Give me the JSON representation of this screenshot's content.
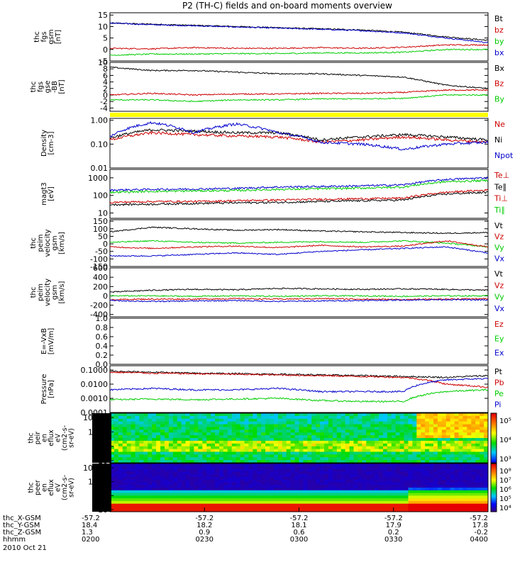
{
  "title": "P2 (TH-C) fields and on-board moments overview",
  "chart_data": {
    "type": "line",
    "panels": [
      {
        "ylabel": [
          "thc",
          "fgs",
          "gsm",
          "[nT]"
        ],
        "yticks": [
          "15",
          "10",
          "5",
          "0",
          "-5"
        ],
        "ylim": [
          -5,
          16
        ],
        "legend": [
          {
            "name": "Bt",
            "color": "#000000"
          },
          {
            "name": "bz",
            "color": "#cc0000"
          },
          {
            "name": "by",
            "color": "#00cc00"
          },
          {
            "name": "bx",
            "color": "#0000cc"
          }
        ],
        "series": [
          {
            "name": "Bt",
            "color": "#000000",
            "values": [
              11.5,
              11,
              10.5,
              10,
              9.5,
              9,
              8.5,
              7.5,
              5.5,
              4
            ]
          },
          {
            "name": "bx",
            "color": "#0000cc",
            "values": [
              11.5,
              10.8,
              10.3,
              9.8,
              9.3,
              8.8,
              8.2,
              7.2,
              5,
              3
            ]
          },
          {
            "name": "bz",
            "color": "#cc0000",
            "values": [
              0.5,
              0.3,
              0.8,
              0.5,
              0.5,
              0.8,
              0.5,
              1,
              2,
              2
            ]
          },
          {
            "name": "by",
            "color": "#00cc00",
            "values": [
              -2.5,
              -2,
              -2,
              -1.8,
              -1.8,
              -1.5,
              -1.5,
              -1.2,
              0,
              0
            ]
          }
        ]
      },
      {
        "ylabel": [
          "thc",
          "fgs",
          "gse",
          "-BB",
          "[nT]"
        ],
        "yticks": [
          "10",
          "8",
          "6",
          "4",
          "2",
          "0",
          "-2",
          "-4"
        ],
        "ylim": [
          -5,
          10
        ],
        "legend": [
          {
            "name": "Bx",
            "color": "#000000"
          },
          {
            "name": "Bz",
            "color": "#cc0000"
          },
          {
            "name": "By",
            "color": "#00cc00"
          }
        ],
        "series": [
          {
            "name": "Bx",
            "color": "#000000",
            "values": [
              8.5,
              7.5,
              7.5,
              7,
              6.5,
              6.5,
              6,
              5.5,
              3,
              2
            ]
          },
          {
            "name": "Bz",
            "color": "#cc0000",
            "values": [
              0,
              0.5,
              0,
              0.3,
              0.3,
              0.5,
              0.5,
              0.8,
              1.5,
              1.5
            ]
          },
          {
            "name": "By",
            "color": "#00cc00",
            "values": [
              -1.5,
              -1.5,
              -2,
              -1.5,
              -1.5,
              -1.2,
              -1.2,
              -1,
              0,
              0
            ]
          }
        ]
      },
      {
        "ylabel": [
          "Density",
          "[cm-3]"
        ],
        "yticks": [
          "1.00",
          "0.10",
          "0.01"
        ],
        "ylim": [
          0.01,
          1.2
        ],
        "log": true,
        "legend": [
          {
            "name": "Ne",
            "color": "#cc0000"
          },
          {
            "name": "Ni",
            "color": "#000000"
          },
          {
            "name": "Npot",
            "color": "#0000cc"
          }
        ],
        "series": [
          {
            "name": "Ni",
            "color": "#000000",
            "values": [
              0.18,
              0.4,
              0.35,
              0.3,
              0.3,
              0.15,
              0.2,
              0.25,
              0.2,
              0.15
            ]
          },
          {
            "name": "Ne",
            "color": "#cc0000",
            "values": [
              0.15,
              0.3,
              0.25,
              0.22,
              0.2,
              0.12,
              0.15,
              0.2,
              0.15,
              0.12
            ]
          },
          {
            "name": "Npot",
            "color": "#0000cc",
            "values": [
              0.2,
              0.8,
              0.3,
              0.7,
              0.3,
              0.12,
              0.1,
              0.06,
              0.1,
              0.12
            ]
          }
        ]
      },
      {
        "ylabel": [
          "magt3",
          "[eV]"
        ],
        "yticks": [
          "1000",
          "100",
          "10"
        ],
        "ylim": [
          5,
          3000
        ],
        "log": true,
        "legend": [
          {
            "name": "Te⊥",
            "color": "#cc0000"
          },
          {
            "name": "Te∥",
            "color": "#000000"
          },
          {
            "name": "Ti⊥",
            "color": "#cc0000"
          },
          {
            "name": "Ti∥",
            "color": "#00cc00"
          }
        ],
        "series": [
          {
            "name": "Ti⊥",
            "color": "#0000cc",
            "values": [
              200,
              220,
              230,
              250,
              300,
              320,
              350,
              400,
              800,
              1000
            ]
          },
          {
            "name": "Ti∥",
            "color": "#00cc00",
            "values": [
              150,
              170,
              180,
              190,
              220,
              240,
              260,
              300,
              600,
              700
            ]
          },
          {
            "name": "Te⊥",
            "color": "#cc0000",
            "values": [
              40,
              45,
              45,
              50,
              55,
              60,
              65,
              70,
              150,
              200
            ]
          },
          {
            "name": "Te∥",
            "color": "#000000",
            "values": [
              30,
              32,
              35,
              38,
              40,
              45,
              50,
              55,
              120,
              150
            ]
          }
        ]
      },
      {
        "ylabel": [
          "thc",
          "peim",
          "velocity",
          "gsm",
          "[km/s]"
        ],
        "yticks": [
          "150",
          "100",
          "50",
          "0",
          "-50",
          "-100",
          "-150"
        ],
        "ylim": [
          -150,
          160
        ],
        "legend": [
          {
            "name": "Vt",
            "color": "#000000"
          },
          {
            "name": "Vz",
            "color": "#cc0000"
          },
          {
            "name": "Vy",
            "color": "#00cc00"
          },
          {
            "name": "Vx",
            "color": "#0000cc"
          }
        ],
        "series": [
          {
            "name": "Vt",
            "color": "#000000",
            "values": [
              80,
              110,
              100,
              90,
              95,
              85,
              80,
              75,
              70,
              75
            ]
          },
          {
            "name": "Vy",
            "color": "#00cc00",
            "values": [
              10,
              20,
              10,
              5,
              10,
              15,
              10,
              20,
              5,
              -20
            ]
          },
          {
            "name": "Vz",
            "color": "#cc0000",
            "values": [
              -20,
              -30,
              -20,
              -15,
              -25,
              -10,
              -20,
              -15,
              20,
              -20
            ]
          },
          {
            "name": "Vx",
            "color": "#0000cc",
            "values": [
              -80,
              -80,
              -70,
              -60,
              -70,
              -50,
              -40,
              -30,
              -20,
              -60
            ]
          }
        ]
      },
      {
        "ylabel": [
          "thc",
          "peim",
          "velocity",
          "gsm",
          "[km/s]"
        ],
        "yticks": [
          "600",
          "400",
          "200",
          "0",
          "-200",
          "-400"
        ],
        "ylim": [
          -450,
          600
        ],
        "legend": [
          {
            "name": "Vt",
            "color": "#000000"
          },
          {
            "name": "Vz",
            "color": "#cc0000"
          },
          {
            "name": "Vy",
            "color": "#00cc00"
          },
          {
            "name": "Vx",
            "color": "#0000cc"
          }
        ],
        "series": [
          {
            "name": "Vt",
            "color": "#000000",
            "values": [
              80,
              120,
              140,
              130,
              160,
              150,
              140,
              150,
              140,
              120
            ]
          },
          {
            "name": "Vy",
            "color": "#00cc00",
            "values": [
              0,
              0,
              -10,
              0,
              -10,
              0,
              0,
              -10,
              0,
              0
            ]
          },
          {
            "name": "Vz",
            "color": "#cc0000",
            "values": [
              -80,
              -70,
              -70,
              -60,
              -70,
              -60,
              -70,
              -80,
              -70,
              -60
            ]
          },
          {
            "name": "Vx",
            "color": "#0000cc",
            "values": [
              -100,
              -120,
              -110,
              -100,
              -120,
              -110,
              -100,
              -90,
              -80,
              -90
            ]
          }
        ]
      },
      {
        "ylabel": [
          "E=-VxB",
          "[mV/m]"
        ],
        "yticks": [
          "1.0",
          "0.8",
          "0.6",
          "0.4",
          "0.2",
          "0.0"
        ],
        "ylim": [
          0,
          1
        ],
        "legend": [
          {
            "name": "Ez",
            "color": "#cc0000"
          },
          {
            "name": "Ey",
            "color": "#00cc00"
          },
          {
            "name": "Ex",
            "color": "#0000cc"
          }
        ],
        "series": []
      },
      {
        "ylabel": [
          "Pressure",
          "[nPa]"
        ],
        "yticks": [
          "0.1000",
          "0.0100",
          "0.0010",
          "0.0001"
        ],
        "ylim": [
          0.0001,
          0.2
        ],
        "log": true,
        "legend": [
          {
            "name": "Pt",
            "color": "#000000"
          },
          {
            "name": "Pb",
            "color": "#cc0000"
          },
          {
            "name": "Pe",
            "color": "#00cc00"
          },
          {
            "name": "Pi",
            "color": "#0000cc"
          }
        ],
        "series": [
          {
            "name": "Pt",
            "color": "#000000",
            "values": [
              0.08,
              0.07,
              0.06,
              0.055,
              0.05,
              0.045,
              0.04,
              0.035,
              0.03,
              0.04
            ]
          },
          {
            "name": "Pb",
            "color": "#cc0000",
            "values": [
              0.07,
              0.06,
              0.055,
              0.05,
              0.045,
              0.04,
              0.035,
              0.03,
              0.01,
              0.006
            ]
          },
          {
            "name": "Pi",
            "color": "#0000cc",
            "values": [
              0.004,
              0.005,
              0.004,
              0.004,
              0.005,
              0.003,
              0.003,
              0.003,
              0.02,
              0.025
            ]
          },
          {
            "name": "Pe",
            "color": "#00cc00",
            "values": [
              0.0008,
              0.0009,
              0.0008,
              0.0009,
              0.001,
              0.0007,
              0.0006,
              0.0006,
              0.003,
              0.004
            ]
          }
        ]
      }
    ],
    "spectrograms": [
      {
        "type": "heatmap",
        "ylabel": [
          "thc",
          "peir",
          "en",
          "eflux",
          "eV",
          "(cm2-s-",
          "sr-eV)"
        ],
        "yticks": [
          "10000",
          "1000",
          "100",
          "10"
        ],
        "colorbar_ticks": [
          "10⁵",
          "10⁴",
          "10³"
        ]
      },
      {
        "type": "heatmap",
        "ylabel": [
          "thc",
          "peer",
          "en",
          "eflux",
          "eV",
          "(cm2-s-",
          "sr-eV)"
        ],
        "yticks": [
          "10000",
          "1000",
          "100",
          "10"
        ],
        "colorbar_ticks": [
          "10⁸",
          "10⁷",
          "10⁶",
          "10⁵",
          "10⁴"
        ]
      }
    ],
    "x_axis": {
      "rows": [
        {
          "label": "thc_X-GSM",
          "values": [
            "-57.2",
            "-57.2",
            "-57.2",
            "-57.2",
            "-57.2"
          ]
        },
        {
          "label": "thc_Y-GSM",
          "values": [
            "18.4",
            "18.2",
            "18.1",
            "17.9",
            "17.8"
          ]
        },
        {
          "label": "thc_Z-GSM",
          "values": [
            "1.3",
            "0.9",
            "0.6",
            "0.2",
            "-0.2"
          ]
        },
        {
          "label": "hhmm",
          "values": [
            "0200",
            "0230",
            "0300",
            "0330",
            "0400"
          ]
        }
      ],
      "date": "2010 Oct 21"
    }
  }
}
